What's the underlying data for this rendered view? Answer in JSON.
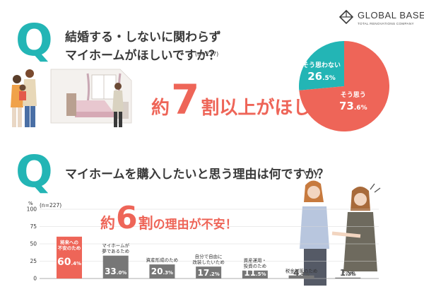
{
  "brand": {
    "name": "GLOBAL BASE",
    "tagline": "TOTAL RENOVATIONS COMPANY"
  },
  "colors": {
    "accent_teal": "#23b5b5",
    "accent_coral": "#ee6558",
    "bar_gray": "#777777",
    "text_dark": "#3a3a3a"
  },
  "q1": {
    "badge": "Q",
    "question_line1": "結婚する・しないに関わらず",
    "question_line2": "マイホームがほしいですか？",
    "sample": "(n=227)",
    "headline_pre": "約",
    "headline_num": "7",
    "headline_post": "割以上がほしい"
  },
  "q2": {
    "badge": "Q",
    "question": "マイホームを購入したいと思う理由は何ですか？",
    "headline_pre": "約",
    "headline_num": "6",
    "headline_mid": "割",
    "headline_post": "の理由が不安！"
  },
  "chart_data": [
    {
      "type": "pie",
      "slices": [
        {
          "label": "そう思う",
          "value": 73.6,
          "display_int": "73",
          "display_dec": ".6",
          "unit": "%",
          "color": "#ee6558"
        },
        {
          "label": "そう思わない",
          "value": 26.5,
          "display_int": "26",
          "display_dec": ".5",
          "unit": "%",
          "color": "#23b5b5"
        }
      ]
    },
    {
      "type": "bar",
      "sample": "(n=227)",
      "y_unit": "%",
      "ylim": [
        0,
        100
      ],
      "yticks": [
        "100",
        "75",
        "50",
        "25",
        "0"
      ],
      "categories": [
        [
          "将来への",
          "不安のため"
        ],
        [
          "マイホームが",
          "夢であるため"
        ],
        [
          "資産形成のため"
        ],
        [
          "自分で自由に",
          "改装したいため"
        ],
        [
          "資産運用・",
          "投資のため"
        ],
        [
          "税金対策のため"
        ],
        [
          "その他"
        ]
      ],
      "values": [
        60.4,
        33.0,
        20.3,
        17.2,
        11.5,
        4.4,
        1.3
      ],
      "display_int": [
        "60",
        "33",
        "20",
        "17",
        "11",
        "4",
        "1"
      ],
      "display_dec": [
        ".4",
        ".0",
        ".3",
        ".2",
        ".5",
        ".4",
        ".3"
      ],
      "highlight_index": 0
    }
  ],
  "illustrations": {
    "family_scene": "family-room-illustration",
    "women": "two-women-worried-illustration"
  }
}
